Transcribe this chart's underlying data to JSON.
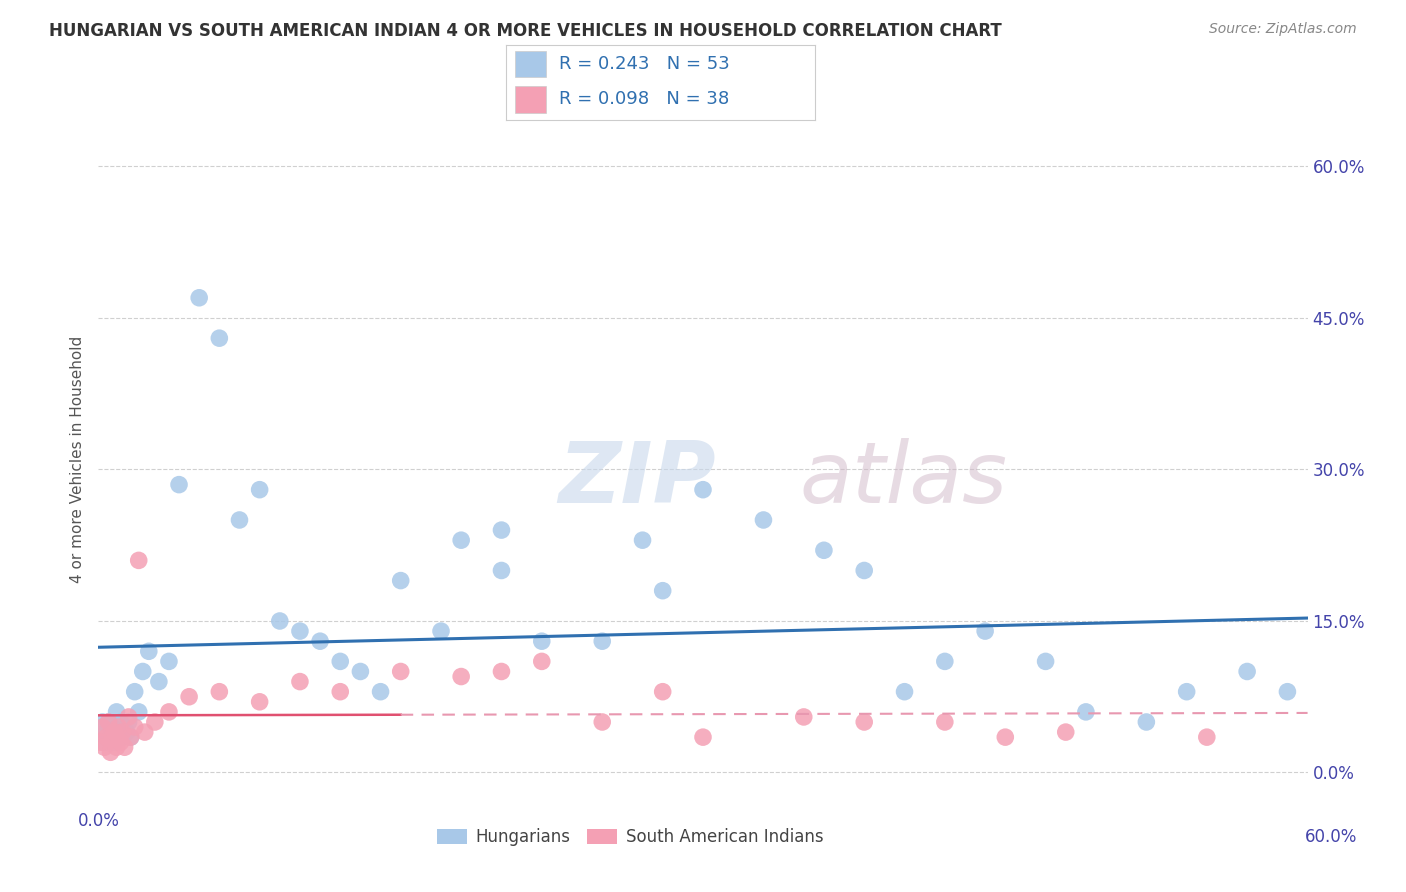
{
  "title": "HUNGARIAN VS SOUTH AMERICAN INDIAN 4 OR MORE VEHICLES IN HOUSEHOLD CORRELATION CHART",
  "source": "Source: ZipAtlas.com",
  "ylabel": "4 or more Vehicles in Household",
  "xlim": [
    0.0,
    60.0
  ],
  "ylim": [
    -3.0,
    65.0
  ],
  "yticks": [
    0.0,
    15.0,
    30.0,
    45.0,
    60.0
  ],
  "ytick_labels_right": [
    "0.0%",
    "15.0%",
    "30.0%",
    "45.0%",
    "60.0%"
  ],
  "watermark_zip": "ZIP",
  "watermark_atlas": "atlas",
  "blue_color": "#a8c8e8",
  "pink_color": "#f4a0b4",
  "blue_line_color": "#3070b0",
  "pink_line_color": "#e05070",
  "pink_dash_color": "#e898b0",
  "background_color": "#ffffff",
  "grid_color": "#d0d0d0",
  "hung_x": [
    0.2,
    0.3,
    0.4,
    0.5,
    0.6,
    0.7,
    0.8,
    0.9,
    1.0,
    1.1,
    1.2,
    1.4,
    1.5,
    1.6,
    1.8,
    2.0,
    2.2,
    2.5,
    3.0,
    3.5,
    4.0,
    5.0,
    6.0,
    7.0,
    8.0,
    9.0,
    10.0,
    11.0,
    12.0,
    13.0,
    14.0,
    15.0,
    17.0,
    18.0,
    20.0,
    22.0,
    25.0,
    27.0,
    30.0,
    33.0,
    36.0,
    38.0,
    40.0,
    42.0,
    44.0,
    47.0,
    49.0,
    52.0,
    54.0,
    57.0,
    59.0,
    20.0,
    28.0
  ],
  "hung_y": [
    5.0,
    3.0,
    4.0,
    5.0,
    3.5,
    4.5,
    3.0,
    6.0,
    4.0,
    5.0,
    3.5,
    4.0,
    5.0,
    3.5,
    8.0,
    6.0,
    10.0,
    12.0,
    9.0,
    11.0,
    28.5,
    47.0,
    43.0,
    25.0,
    28.0,
    15.0,
    14.0,
    13.0,
    11.0,
    10.0,
    8.0,
    19.0,
    14.0,
    23.0,
    20.0,
    13.0,
    13.0,
    23.0,
    28.0,
    25.0,
    22.0,
    20.0,
    8.0,
    11.0,
    14.0,
    11.0,
    6.0,
    5.0,
    8.0,
    10.0,
    8.0,
    24.0,
    18.0
  ],
  "sai_x": [
    0.1,
    0.2,
    0.3,
    0.4,
    0.5,
    0.6,
    0.7,
    0.8,
    0.9,
    1.0,
    1.1,
    1.2,
    1.3,
    1.5,
    1.6,
    1.8,
    2.0,
    2.3,
    2.8,
    3.5,
    4.5,
    6.0,
    8.0,
    10.0,
    12.0,
    15.0,
    18.0,
    20.0,
    22.0,
    25.0,
    28.0,
    30.0,
    35.0,
    38.0,
    42.0,
    45.0,
    48.0,
    55.0
  ],
  "sai_y": [
    3.0,
    4.5,
    2.5,
    3.5,
    5.0,
    2.0,
    3.5,
    4.0,
    2.5,
    4.5,
    3.0,
    4.0,
    2.5,
    5.5,
    3.5,
    4.5,
    21.0,
    4.0,
    5.0,
    6.0,
    7.5,
    8.0,
    7.0,
    9.0,
    8.0,
    10.0,
    9.5,
    10.0,
    11.0,
    5.0,
    8.0,
    3.5,
    5.5,
    5.0,
    5.0,
    3.5,
    4.0,
    3.5
  ],
  "legend_text_color": "#3070b0",
  "legend_border_color": "#cccccc"
}
